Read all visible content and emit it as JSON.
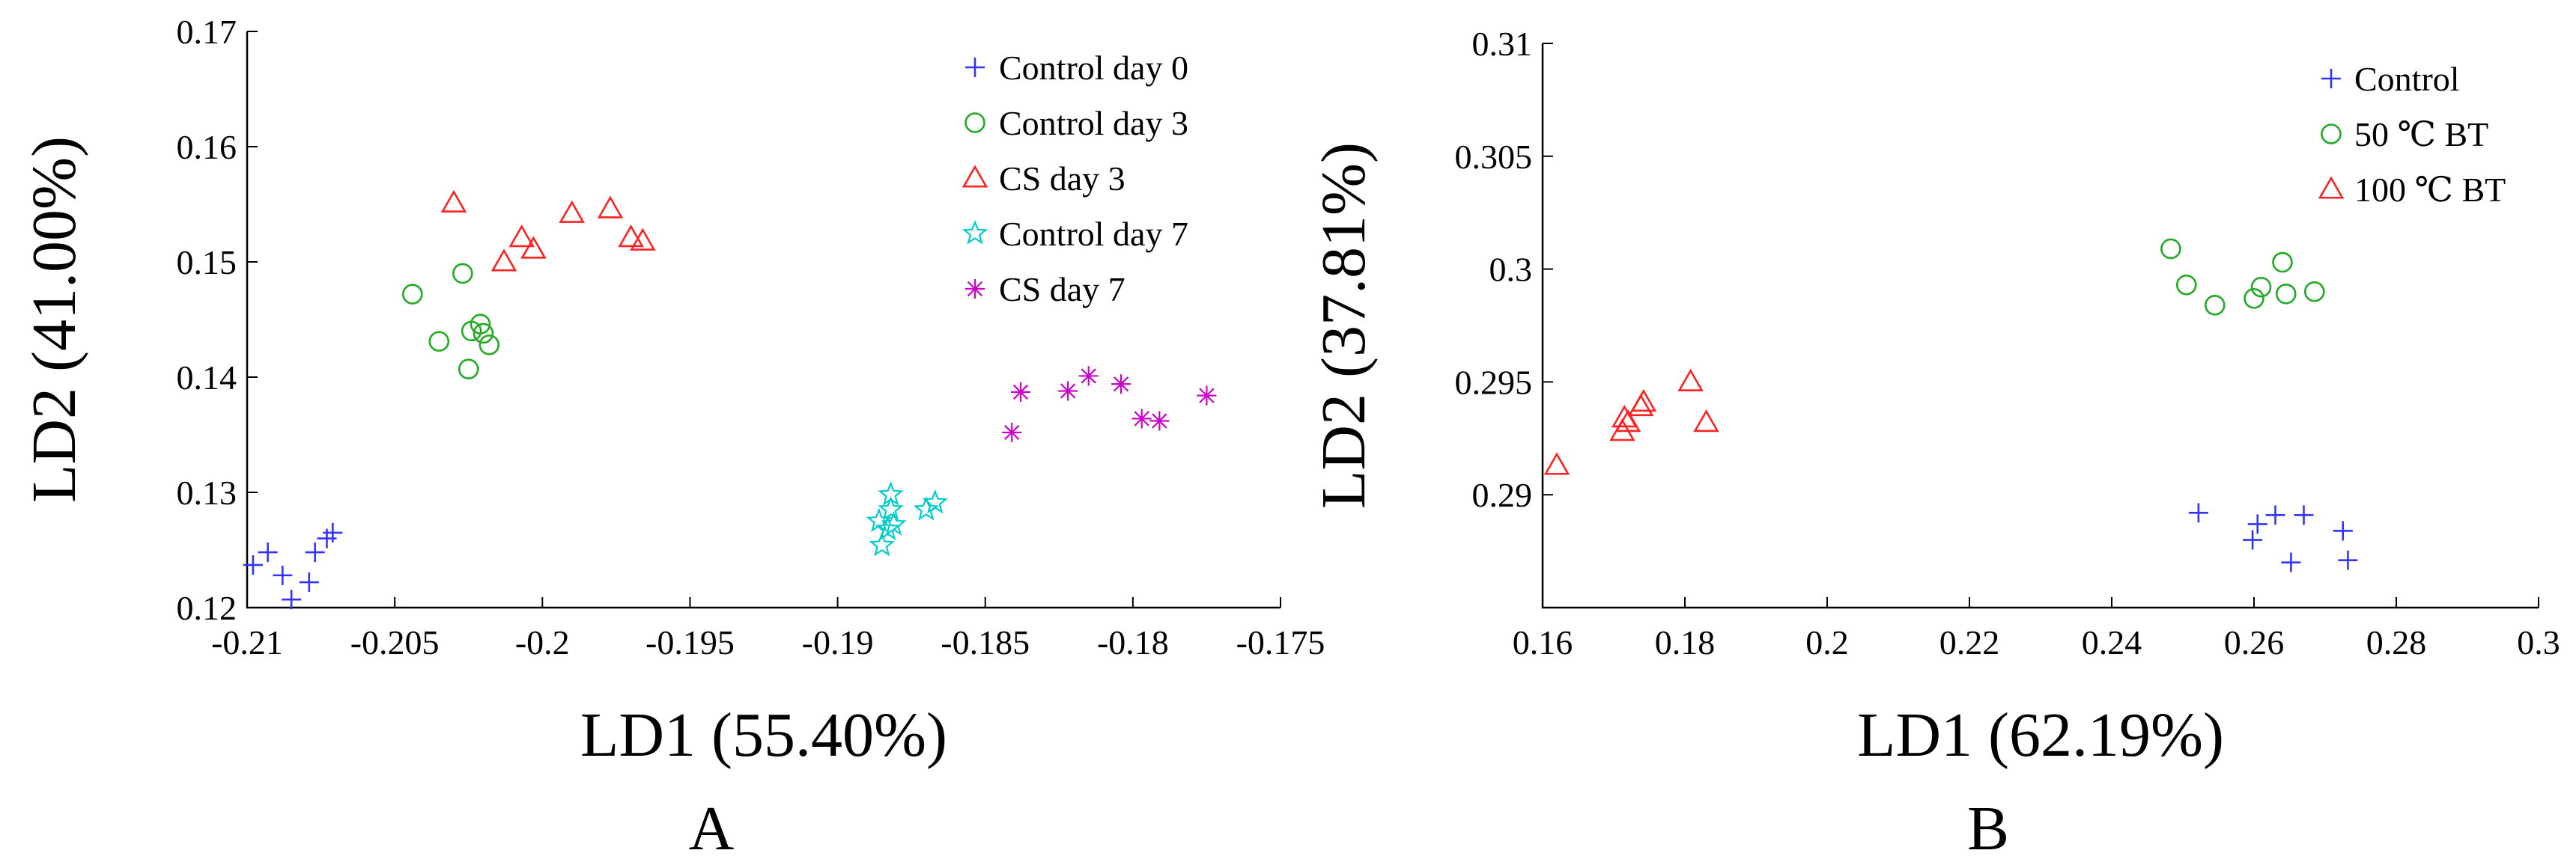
{
  "chart_data": [
    {
      "type": "scatter",
      "panel": "A",
      "xlabel": "LD1 (55.40%)",
      "ylabel": "LD2 (41.00%)",
      "xlim": [
        -0.21,
        -0.175
      ],
      "ylim": [
        0.12,
        0.17
      ],
      "xticks": [
        -0.21,
        -0.205,
        -0.2,
        -0.195,
        -0.19,
        -0.185,
        -0.18,
        -0.175
      ],
      "xtick_labels": [
        "-0.21",
        "-0.205",
        "-0.2",
        "-0.195",
        "-0.19",
        "-0.185",
        "-0.18",
        "-0.175"
      ],
      "yticks": [
        0.12,
        0.13,
        0.14,
        0.15,
        0.16,
        0.17
      ],
      "ytick_labels": [
        "0.12",
        "0.13",
        "0.14",
        "0.15",
        "0.16",
        "0.17"
      ],
      "grid": false,
      "legend_position": "top-right",
      "series": [
        {
          "name": "Control day 0",
          "marker": "plus",
          "color": "#3333ff",
          "points": [
            [
              -0.2098,
              0.1237
            ],
            [
              -0.2093,
              0.1248
            ],
            [
              -0.2088,
              0.1228
            ],
            [
              -0.2085,
              0.1207
            ],
            [
              -0.2079,
              0.1222
            ],
            [
              -0.2077,
              0.1248
            ],
            [
              -0.2073,
              0.126
            ],
            [
              -0.2071,
              0.1265
            ]
          ]
        },
        {
          "name": "Control day 3",
          "marker": "circle",
          "color": "#22aa22",
          "points": [
            [
              -0.2044,
              0.1472
            ],
            [
              -0.2035,
              0.1431
            ],
            [
              -0.2027,
              0.149
            ],
            [
              -0.2025,
              0.1407
            ],
            [
              -0.2024,
              0.144
            ],
            [
              -0.2021,
              0.1446
            ],
            [
              -0.202,
              0.1438
            ],
            [
              -0.2018,
              0.1428
            ]
          ]
        },
        {
          "name": "CS day 3",
          "marker": "triangle",
          "color": "#ff2222",
          "points": [
            [
              -0.203,
              0.1551
            ],
            [
              -0.2013,
              0.15
            ],
            [
              -0.2007,
              0.1521
            ],
            [
              -0.2003,
              0.1511
            ],
            [
              -0.199,
              0.1542
            ],
            [
              -0.1977,
              0.1546
            ],
            [
              -0.197,
              0.1521
            ],
            [
              -0.1966,
              0.1518
            ]
          ]
        },
        {
          "name": "Control day 7",
          "marker": "star",
          "color": "#00cccc",
          "points": [
            [
              -0.1886,
              0.1275
            ],
            [
              -0.1885,
              0.1254
            ],
            [
              -0.1883,
              0.1268
            ],
            [
              -0.1882,
              0.1285
            ],
            [
              -0.1882,
              0.1298
            ],
            [
              -0.1881,
              0.1272
            ],
            [
              -0.187,
              0.1285
            ],
            [
              -0.1867,
              0.1291
            ]
          ]
        },
        {
          "name": "CS day 7",
          "marker": "asterisk",
          "color": "#cc00cc",
          "points": [
            [
              -0.1841,
              0.1352
            ],
            [
              -0.1838,
              0.1387
            ],
            [
              -0.1822,
              0.1388
            ],
            [
              -0.1815,
              0.1401
            ],
            [
              -0.1804,
              0.1394
            ],
            [
              -0.1797,
              0.1364
            ],
            [
              -0.1791,
              0.1362
            ],
            [
              -0.1775,
              0.1384
            ]
          ]
        }
      ]
    },
    {
      "type": "scatter",
      "panel": "B",
      "xlabel": "LD1 (62.19%)",
      "ylabel": "LD2 (37.81%)",
      "xlim": [
        0.16,
        0.3
      ],
      "ylim": [
        0.285,
        0.31
      ],
      "xticks": [
        0.16,
        0.18,
        0.2,
        0.22,
        0.24,
        0.26,
        0.28,
        0.3
      ],
      "xtick_labels": [
        "0.16",
        "0.18",
        "0.2",
        "0.22",
        "0.24",
        "0.26",
        "0.28",
        "0.3"
      ],
      "yticks": [
        0.29,
        0.295,
        0.3,
        0.305,
        0.31
      ],
      "ytick_labels": [
        "0.29",
        "0.295",
        "0.3",
        "0.305",
        "0.31"
      ],
      "grid": false,
      "legend_position": "top-right",
      "series": [
        {
          "name": "Control",
          "marker": "plus",
          "color": "#3333ff",
          "points": [
            [
              0.2522,
              0.2892
            ],
            [
              0.2598,
              0.288
            ],
            [
              0.2605,
              0.2887
            ],
            [
              0.263,
              0.2891
            ],
            [
              0.2652,
              0.287
            ],
            [
              0.267,
              0.2891
            ],
            [
              0.2725,
              0.2884
            ],
            [
              0.2732,
              0.2871
            ]
          ]
        },
        {
          "name": "50 ℃ BT",
          "marker": "circle",
          "color": "#22aa22",
          "points": [
            [
              0.2483,
              0.3009
            ],
            [
              0.2505,
              0.2993
            ],
            [
              0.2545,
              0.2984
            ],
            [
              0.26,
              0.2987
            ],
            [
              0.261,
              0.2992
            ],
            [
              0.264,
              0.3003
            ],
            [
              0.2645,
              0.2989
            ],
            [
              0.2685,
              0.299
            ]
          ]
        },
        {
          "name": "100 ℃ BT",
          "marker": "triangle",
          "color": "#ff2222",
          "points": [
            [
              0.162,
              0.2913
            ],
            [
              0.1712,
              0.2928
            ],
            [
              0.1715,
              0.2934
            ],
            [
              0.172,
              0.2932
            ],
            [
              0.1738,
              0.2939
            ],
            [
              0.1742,
              0.2941
            ],
            [
              0.1808,
              0.295
            ],
            [
              0.183,
              0.2932
            ]
          ]
        }
      ]
    }
  ]
}
